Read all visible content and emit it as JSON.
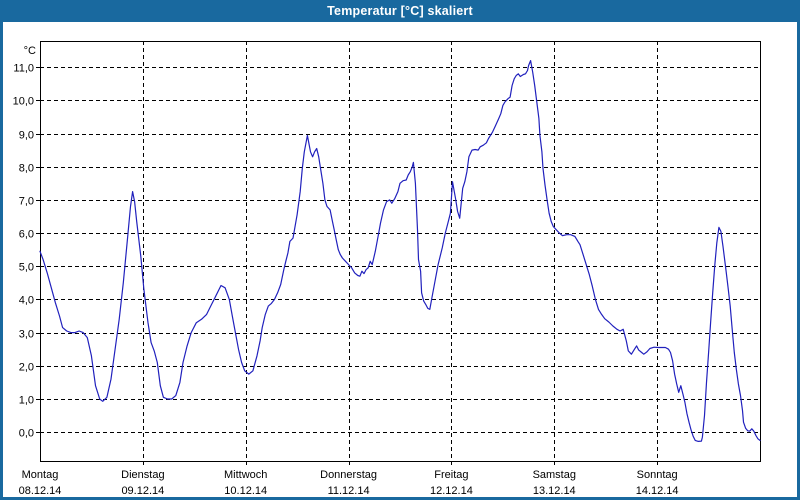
{
  "window": {
    "title": "Temperatur [°C] skaliert"
  },
  "colors": {
    "titlebar_bg": "#19699f",
    "titlebar_text": "#ffffff",
    "window_border": "#19699f",
    "line": "#2121bd",
    "grid": "#000000",
    "axis": "#000000",
    "text": "#000000",
    "plot_bg": "#ffffff"
  },
  "chart_data": {
    "type": "line",
    "title": "Temperatur [°C] skaliert",
    "ylabel_unit": "°C",
    "grid": "dashed",
    "legend": "none",
    "y_axis": {
      "ylim": [
        -0.87,
        11.79
      ],
      "tick_values": [
        0,
        1,
        2,
        3,
        4,
        5,
        6,
        7,
        8,
        9,
        10,
        11
      ],
      "tick_labels": [
        "0,0",
        "1,0",
        "2,0",
        "3,0",
        "4,0",
        "5,0",
        "6,0",
        "7,0",
        "8,0",
        "9,0",
        "10,0",
        "11,0"
      ]
    },
    "x_axis": {
      "xlim_days": [
        0,
        7
      ],
      "days": [
        {
          "name": "Montag",
          "date": "08.12.14"
        },
        {
          "name": "Dienstag",
          "date": "09.12.14"
        },
        {
          "name": "Mittwoch",
          "date": "10.12.14"
        },
        {
          "name": "Donnerstag",
          "date": "11.12.14"
        },
        {
          "name": "Freitag",
          "date": "12.12.14"
        },
        {
          "name": "Samstag",
          "date": "13.12.14"
        },
        {
          "name": "Sonntag",
          "date": "14.12.14"
        }
      ]
    },
    "series": [
      {
        "name": "Temperatur",
        "color": "#2121bd",
        "points": [
          [
            0,
            5.45
          ],
          [
            0.03,
            5.2
          ],
          [
            0.07,
            4.8
          ],
          [
            0.11,
            4.35
          ],
          [
            0.15,
            3.9
          ],
          [
            0.19,
            3.5
          ],
          [
            0.22,
            3.15
          ],
          [
            0.26,
            3.05
          ],
          [
            0.3,
            3.0
          ],
          [
            0.34,
            3.0
          ],
          [
            0.38,
            3.05
          ],
          [
            0.42,
            3.0
          ],
          [
            0.46,
            2.85
          ],
          [
            0.5,
            2.3
          ],
          [
            0.54,
            1.4
          ],
          [
            0.58,
            1.0
          ],
          [
            0.61,
            0.93
          ],
          [
            0.65,
            1.05
          ],
          [
            0.69,
            1.6
          ],
          [
            0.73,
            2.5
          ],
          [
            0.77,
            3.4
          ],
          [
            0.81,
            4.5
          ],
          [
            0.85,
            5.8
          ],
          [
            0.88,
            6.8
          ],
          [
            0.9,
            7.25
          ],
          [
            0.92,
            6.95
          ],
          [
            0.94,
            6.35
          ],
          [
            0.98,
            5.3
          ],
          [
            1.01,
            4.3
          ],
          [
            1.05,
            3.3
          ],
          [
            1.08,
            2.7
          ],
          [
            1.11,
            2.45
          ],
          [
            1.14,
            2.1
          ],
          [
            1.17,
            1.4
          ],
          [
            1.2,
            1.05
          ],
          [
            1.24,
            1.0
          ],
          [
            1.28,
            1.0
          ],
          [
            1.32,
            1.1
          ],
          [
            1.36,
            1.5
          ],
          [
            1.39,
            2.1
          ],
          [
            1.43,
            2.6
          ],
          [
            1.47,
            3.0
          ],
          [
            1.52,
            3.3
          ],
          [
            1.57,
            3.4
          ],
          [
            1.62,
            3.55
          ],
          [
            1.66,
            3.8
          ],
          [
            1.7,
            4.05
          ],
          [
            1.74,
            4.3
          ],
          [
            1.76,
            4.42
          ],
          [
            1.8,
            4.35
          ],
          [
            1.84,
            4.0
          ],
          [
            1.87,
            3.5
          ],
          [
            1.9,
            3.0
          ],
          [
            1.93,
            2.5
          ],
          [
            1.96,
            2.1
          ],
          [
            1.99,
            1.85
          ],
          [
            2.03,
            1.75
          ],
          [
            2.07,
            1.85
          ],
          [
            2.11,
            2.3
          ],
          [
            2.14,
            2.75
          ],
          [
            2.16,
            3.15
          ],
          [
            2.19,
            3.55
          ],
          [
            2.22,
            3.8
          ],
          [
            2.25,
            3.88
          ],
          [
            2.28,
            4.0
          ],
          [
            2.31,
            4.2
          ],
          [
            2.34,
            4.45
          ],
          [
            2.37,
            4.9
          ],
          [
            2.39,
            5.15
          ],
          [
            2.41,
            5.4
          ],
          [
            2.43,
            5.75
          ],
          [
            2.46,
            5.85
          ],
          [
            2.5,
            6.55
          ],
          [
            2.53,
            7.25
          ],
          [
            2.55,
            7.95
          ],
          [
            2.57,
            8.45
          ],
          [
            2.6,
            8.94
          ],
          [
            2.63,
            8.45
          ],
          [
            2.65,
            8.3
          ],
          [
            2.67,
            8.45
          ],
          [
            2.69,
            8.55
          ],
          [
            2.71,
            8.3
          ],
          [
            2.73,
            7.9
          ],
          [
            2.75,
            7.5
          ],
          [
            2.77,
            7.0
          ],
          [
            2.79,
            6.8
          ],
          [
            2.82,
            6.7
          ],
          [
            2.84,
            6.4
          ],
          [
            2.86,
            6.1
          ],
          [
            2.88,
            5.8
          ],
          [
            2.9,
            5.5
          ],
          [
            2.92,
            5.35
          ],
          [
            2.94,
            5.25
          ],
          [
            2.97,
            5.15
          ],
          [
            3.0,
            5.05
          ],
          [
            3.03,
            4.95
          ],
          [
            3.06,
            4.8
          ],
          [
            3.09,
            4.72
          ],
          [
            3.11,
            4.7
          ],
          [
            3.13,
            4.85
          ],
          [
            3.15,
            4.78
          ],
          [
            3.17,
            4.9
          ],
          [
            3.19,
            4.95
          ],
          [
            3.21,
            5.15
          ],
          [
            3.23,
            5.05
          ],
          [
            3.26,
            5.45
          ],
          [
            3.29,
            5.95
          ],
          [
            3.31,
            6.3
          ],
          [
            3.34,
            6.7
          ],
          [
            3.37,
            6.95
          ],
          [
            3.4,
            7.0
          ],
          [
            3.42,
            6.9
          ],
          [
            3.45,
            7.05
          ],
          [
            3.48,
            7.25
          ],
          [
            3.5,
            7.5
          ],
          [
            3.53,
            7.58
          ],
          [
            3.56,
            7.6
          ],
          [
            3.58,
            7.75
          ],
          [
            3.6,
            7.85
          ],
          [
            3.62,
            8.0
          ],
          [
            3.63,
            8.13
          ],
          [
            3.65,
            7.5
          ],
          [
            3.67,
            6.1
          ],
          [
            3.68,
            5.2
          ],
          [
            3.7,
            4.85
          ],
          [
            3.71,
            4.2
          ],
          [
            3.73,
            3.95
          ],
          [
            3.75,
            3.85
          ],
          [
            3.77,
            3.73
          ],
          [
            3.79,
            3.7
          ],
          [
            3.81,
            4.05
          ],
          [
            3.84,
            4.55
          ],
          [
            3.87,
            5.05
          ],
          [
            3.91,
            5.55
          ],
          [
            3.94,
            6.0
          ],
          [
            3.97,
            6.35
          ],
          [
            3.99,
            6.6
          ],
          [
            4.01,
            7.55
          ],
          [
            4.04,
            7.05
          ],
          [
            4.06,
            6.65
          ],
          [
            4.08,
            6.45
          ],
          [
            4.09,
            6.75
          ],
          [
            4.11,
            7.35
          ],
          [
            4.13,
            7.55
          ],
          [
            4.15,
            7.85
          ],
          [
            4.17,
            8.3
          ],
          [
            4.2,
            8.5
          ],
          [
            4.23,
            8.52
          ],
          [
            4.26,
            8.5
          ],
          [
            4.28,
            8.6
          ],
          [
            4.31,
            8.65
          ],
          [
            4.34,
            8.72
          ],
          [
            4.36,
            8.85
          ],
          [
            4.4,
            9.05
          ],
          [
            4.43,
            9.25
          ],
          [
            4.46,
            9.45
          ],
          [
            4.48,
            9.6
          ],
          [
            4.5,
            9.85
          ],
          [
            4.52,
            9.95
          ],
          [
            4.55,
            10.05
          ],
          [
            4.57,
            10.1
          ],
          [
            4.59,
            10.45
          ],
          [
            4.61,
            10.65
          ],
          [
            4.63,
            10.75
          ],
          [
            4.65,
            10.8
          ],
          [
            4.67,
            10.72
          ],
          [
            4.7,
            10.78
          ],
          [
            4.72,
            10.8
          ],
          [
            4.74,
            10.9
          ],
          [
            4.75,
            11.05
          ],
          [
            4.77,
            11.2
          ],
          [
            4.79,
            10.85
          ],
          [
            4.81,
            10.45
          ],
          [
            4.83,
            9.95
          ],
          [
            4.85,
            9.45
          ],
          [
            4.86,
            8.95
          ],
          [
            4.88,
            8.45
          ],
          [
            4.89,
            7.95
          ],
          [
            4.91,
            7.45
          ],
          [
            4.93,
            7.0
          ],
          [
            4.95,
            6.6
          ],
          [
            4.97,
            6.35
          ],
          [
            4.99,
            6.2
          ],
          [
            5.02,
            6.1
          ],
          [
            5.05,
            6.0
          ],
          [
            5.08,
            5.92
          ],
          [
            5.12,
            5.95
          ],
          [
            5.16,
            5.95
          ],
          [
            5.2,
            5.9
          ],
          [
            5.23,
            5.75
          ],
          [
            5.25,
            5.65
          ],
          [
            5.28,
            5.35
          ],
          [
            5.31,
            5.05
          ],
          [
            5.34,
            4.75
          ],
          [
            5.37,
            4.4
          ],
          [
            5.4,
            4.0
          ],
          [
            5.43,
            3.7
          ],
          [
            5.46,
            3.55
          ],
          [
            5.49,
            3.42
          ],
          [
            5.53,
            3.32
          ],
          [
            5.57,
            3.2
          ],
          [
            5.61,
            3.1
          ],
          [
            5.64,
            3.05
          ],
          [
            5.67,
            3.1
          ],
          [
            5.7,
            2.75
          ],
          [
            5.72,
            2.45
          ],
          [
            5.75,
            2.35
          ],
          [
            5.78,
            2.5
          ],
          [
            5.8,
            2.6
          ],
          [
            5.82,
            2.48
          ],
          [
            5.85,
            2.4
          ],
          [
            5.87,
            2.35
          ],
          [
            5.9,
            2.42
          ],
          [
            5.93,
            2.52
          ],
          [
            5.97,
            2.56
          ],
          [
            6.01,
            2.55
          ],
          [
            6.04,
            2.55
          ],
          [
            6.08,
            2.55
          ],
          [
            6.11,
            2.5
          ],
          [
            6.13,
            2.4
          ],
          [
            6.15,
            2.15
          ],
          [
            6.17,
            1.75
          ],
          [
            6.19,
            1.45
          ],
          [
            6.21,
            1.2
          ],
          [
            6.23,
            1.4
          ],
          [
            6.25,
            1.15
          ],
          [
            6.27,
            0.9
          ],
          [
            6.29,
            0.55
          ],
          [
            6.31,
            0.3
          ],
          [
            6.33,
            0.06
          ],
          [
            6.35,
            -0.12
          ],
          [
            6.37,
            -0.25
          ],
          [
            6.4,
            -0.28
          ],
          [
            6.43,
            -0.27
          ],
          [
            6.44,
            -0.15
          ],
          [
            6.46,
            0.5
          ],
          [
            6.48,
            1.5
          ],
          [
            6.5,
            2.4
          ],
          [
            6.52,
            3.3
          ],
          [
            6.54,
            4.2
          ],
          [
            6.56,
            5.0
          ],
          [
            6.58,
            5.7
          ],
          [
            6.6,
            6.17
          ],
          [
            6.62,
            6.05
          ],
          [
            6.64,
            5.6
          ],
          [
            6.67,
            4.85
          ],
          [
            6.69,
            4.35
          ],
          [
            6.71,
            3.8
          ],
          [
            6.73,
            3.1
          ],
          [
            6.75,
            2.4
          ],
          [
            6.77,
            1.9
          ],
          [
            6.79,
            1.45
          ],
          [
            6.81,
            1.1
          ],
          [
            6.83,
            0.65
          ],
          [
            6.84,
            0.3
          ],
          [
            6.86,
            0.12
          ],
          [
            6.88,
            0.04
          ],
          [
            6.9,
            0.03
          ],
          [
            6.92,
            0.1
          ],
          [
            6.94,
            0.03
          ],
          [
            6.96,
            -0.1
          ],
          [
            6.98,
            -0.2
          ],
          [
            7.0,
            -0.25
          ]
        ]
      }
    ]
  }
}
